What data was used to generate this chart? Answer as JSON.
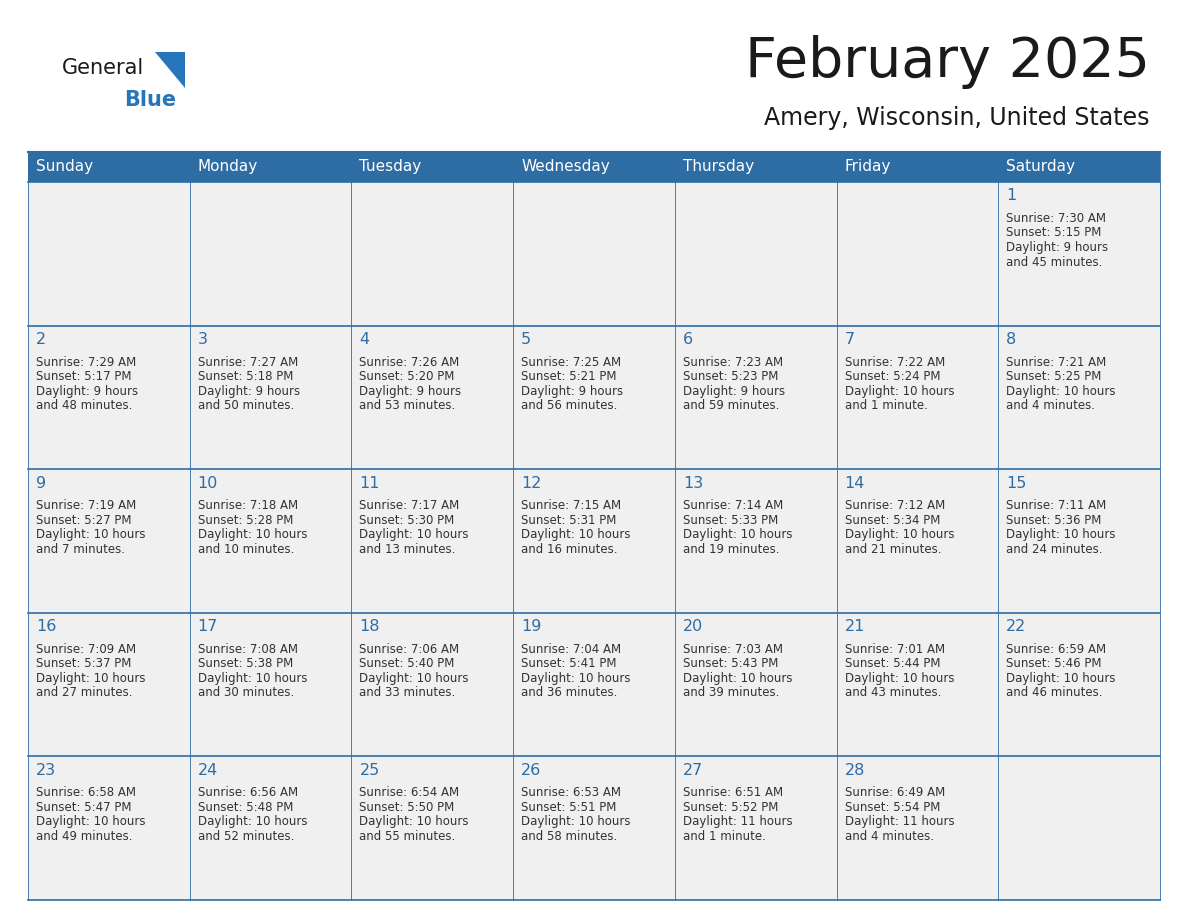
{
  "title": "February 2025",
  "subtitle": "Amery, Wisconsin, United States",
  "header_bg": "#2E6DA4",
  "header_text_color": "#FFFFFF",
  "cell_bg_light": "#F0F0F0",
  "border_color": "#2E6DA4",
  "title_color": "#1a1a1a",
  "subtitle_color": "#1a1a1a",
  "number_color": "#2E6DA4",
  "text_color": "#333333",
  "logo_general_color": "#1a1a1a",
  "logo_blue_color": "#2776BB",
  "day_headers": [
    "Sunday",
    "Monday",
    "Tuesday",
    "Wednesday",
    "Thursday",
    "Friday",
    "Saturday"
  ],
  "weeks": [
    [
      {
        "day": null,
        "info": ""
      },
      {
        "day": null,
        "info": ""
      },
      {
        "day": null,
        "info": ""
      },
      {
        "day": null,
        "info": ""
      },
      {
        "day": null,
        "info": ""
      },
      {
        "day": null,
        "info": ""
      },
      {
        "day": 1,
        "info": "Sunrise: 7:30 AM\nSunset: 5:15 PM\nDaylight: 9 hours\nand 45 minutes."
      }
    ],
    [
      {
        "day": 2,
        "info": "Sunrise: 7:29 AM\nSunset: 5:17 PM\nDaylight: 9 hours\nand 48 minutes."
      },
      {
        "day": 3,
        "info": "Sunrise: 7:27 AM\nSunset: 5:18 PM\nDaylight: 9 hours\nand 50 minutes."
      },
      {
        "day": 4,
        "info": "Sunrise: 7:26 AM\nSunset: 5:20 PM\nDaylight: 9 hours\nand 53 minutes."
      },
      {
        "day": 5,
        "info": "Sunrise: 7:25 AM\nSunset: 5:21 PM\nDaylight: 9 hours\nand 56 minutes."
      },
      {
        "day": 6,
        "info": "Sunrise: 7:23 AM\nSunset: 5:23 PM\nDaylight: 9 hours\nand 59 minutes."
      },
      {
        "day": 7,
        "info": "Sunrise: 7:22 AM\nSunset: 5:24 PM\nDaylight: 10 hours\nand 1 minute."
      },
      {
        "day": 8,
        "info": "Sunrise: 7:21 AM\nSunset: 5:25 PM\nDaylight: 10 hours\nand 4 minutes."
      }
    ],
    [
      {
        "day": 9,
        "info": "Sunrise: 7:19 AM\nSunset: 5:27 PM\nDaylight: 10 hours\nand 7 minutes."
      },
      {
        "day": 10,
        "info": "Sunrise: 7:18 AM\nSunset: 5:28 PM\nDaylight: 10 hours\nand 10 minutes."
      },
      {
        "day": 11,
        "info": "Sunrise: 7:17 AM\nSunset: 5:30 PM\nDaylight: 10 hours\nand 13 minutes."
      },
      {
        "day": 12,
        "info": "Sunrise: 7:15 AM\nSunset: 5:31 PM\nDaylight: 10 hours\nand 16 minutes."
      },
      {
        "day": 13,
        "info": "Sunrise: 7:14 AM\nSunset: 5:33 PM\nDaylight: 10 hours\nand 19 minutes."
      },
      {
        "day": 14,
        "info": "Sunrise: 7:12 AM\nSunset: 5:34 PM\nDaylight: 10 hours\nand 21 minutes."
      },
      {
        "day": 15,
        "info": "Sunrise: 7:11 AM\nSunset: 5:36 PM\nDaylight: 10 hours\nand 24 minutes."
      }
    ],
    [
      {
        "day": 16,
        "info": "Sunrise: 7:09 AM\nSunset: 5:37 PM\nDaylight: 10 hours\nand 27 minutes."
      },
      {
        "day": 17,
        "info": "Sunrise: 7:08 AM\nSunset: 5:38 PM\nDaylight: 10 hours\nand 30 minutes."
      },
      {
        "day": 18,
        "info": "Sunrise: 7:06 AM\nSunset: 5:40 PM\nDaylight: 10 hours\nand 33 minutes."
      },
      {
        "day": 19,
        "info": "Sunrise: 7:04 AM\nSunset: 5:41 PM\nDaylight: 10 hours\nand 36 minutes."
      },
      {
        "day": 20,
        "info": "Sunrise: 7:03 AM\nSunset: 5:43 PM\nDaylight: 10 hours\nand 39 minutes."
      },
      {
        "day": 21,
        "info": "Sunrise: 7:01 AM\nSunset: 5:44 PM\nDaylight: 10 hours\nand 43 minutes."
      },
      {
        "day": 22,
        "info": "Sunrise: 6:59 AM\nSunset: 5:46 PM\nDaylight: 10 hours\nand 46 minutes."
      }
    ],
    [
      {
        "day": 23,
        "info": "Sunrise: 6:58 AM\nSunset: 5:47 PM\nDaylight: 10 hours\nand 49 minutes."
      },
      {
        "day": 24,
        "info": "Sunrise: 6:56 AM\nSunset: 5:48 PM\nDaylight: 10 hours\nand 52 minutes."
      },
      {
        "day": 25,
        "info": "Sunrise: 6:54 AM\nSunset: 5:50 PM\nDaylight: 10 hours\nand 55 minutes."
      },
      {
        "day": 26,
        "info": "Sunrise: 6:53 AM\nSunset: 5:51 PM\nDaylight: 10 hours\nand 58 minutes."
      },
      {
        "day": 27,
        "info": "Sunrise: 6:51 AM\nSunset: 5:52 PM\nDaylight: 11 hours\nand 1 minute."
      },
      {
        "day": 28,
        "info": "Sunrise: 6:49 AM\nSunset: 5:54 PM\nDaylight: 11 hours\nand 4 minutes."
      },
      {
        "day": null,
        "info": ""
      }
    ]
  ]
}
